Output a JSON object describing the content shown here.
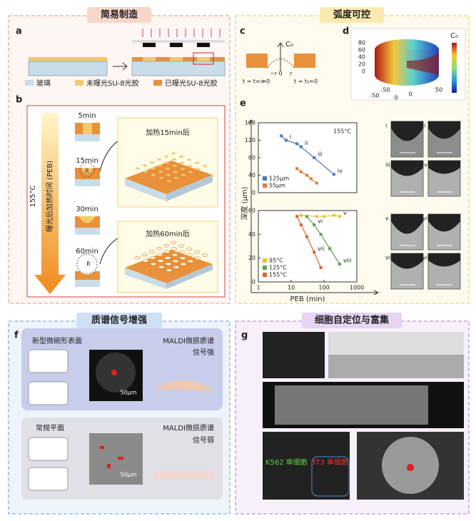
{
  "sections": [
    "简易制造",
    "弧度可控",
    "质谱信号增强",
    "细胞自定位与富集"
  ],
  "panel_a": {
    "label": "a",
    "legend": [
      "玻璃",
      "未曝光SU-8光胶",
      "已曝光SU-8光胶"
    ]
  },
  "panel_b": {
    "label": "b",
    "temperature": "155°C",
    "axis_label": "曝光后加热时间 (PEB)",
    "times": [
      "5min",
      "15min",
      "30min",
      "60min"
    ],
    "radius": [
      "R",
      "R"
    ],
    "captions": [
      "加热15min后",
      "加热60min后"
    ]
  },
  "panel_c": {
    "label": "c",
    "texts": [
      "C₀",
      "−r",
      "0",
      "r",
      "t = t∞≫0",
      "t = t₀≈0"
    ]
  },
  "panel_d": {
    "label": "d",
    "colorbar_label": "C₀",
    "z_ticks": [
      0,
      20,
      40,
      60,
      80
    ],
    "x_ticks": [
      -50,
      0,
      50
    ],
    "y_ticks": [
      -50,
      0
    ]
  },
  "panel_e": {
    "label": "e",
    "image_labels": [
      "i",
      "ii",
      "iii",
      "iv",
      "v",
      "vi",
      "vii",
      "viii"
    ]
  },
  "chart_data": [
    {
      "type": "scatter",
      "xlog": true,
      "lines": true,
      "ylabel": "深度 (μm)",
      "annotation": "155°C",
      "xlim": [
        1,
        1000
      ],
      "ylim": [
        0,
        160
      ],
      "yticks": [
        0,
        40,
        80,
        120,
        160
      ],
      "legend": "lower left",
      "series": [
        {
          "name": "125μm",
          "color": "#4a78c2",
          "x": [
            5,
            7,
            15,
            20,
            50,
            200
          ],
          "values": [
            130,
            120,
            112,
            105,
            80,
            42
          ],
          "labels": [
            null,
            "i",
            null,
            "ii",
            "iii",
            "iv"
          ]
        },
        {
          "name": "55μm",
          "color": "#e07b39",
          "x": [
            15,
            20,
            30,
            40,
            60
          ],
          "values": [
            55,
            48,
            40,
            32,
            22
          ]
        }
      ]
    },
    {
      "type": "scatter",
      "xlog": true,
      "lines": true,
      "xlabel": "PEB (min)",
      "xlim": [
        1,
        1000
      ],
      "xticks": [
        1,
        10,
        100,
        1000
      ],
      "ylim": [
        0,
        60
      ],
      "yticks": [
        0,
        20,
        40,
        60
      ],
      "legend": "lower left",
      "series": [
        {
          "name": "95°C",
          "color": "#e8c23a",
          "x": [
            15,
            20,
            60,
            100,
            200,
            300
          ],
          "values": [
            55,
            56,
            55,
            55,
            56,
            55
          ],
          "labels": [
            null,
            null,
            null,
            null,
            null,
            "v"
          ]
        },
        {
          "name": "125°C",
          "color": "#5aa04a",
          "x": [
            30,
            50,
            80,
            150,
            300
          ],
          "values": [
            55,
            48,
            40,
            28,
            15
          ],
          "labels": [
            null,
            "vi",
            null,
            null,
            "viii"
          ]
        },
        {
          "name": "155°C",
          "color": "#e0622e",
          "x": [
            15,
            20,
            30,
            50,
            80
          ],
          "values": [
            55,
            48,
            38,
            25,
            12
          ],
          "labels": [
            null,
            null,
            null,
            "vii",
            null
          ]
        }
      ]
    }
  ],
  "panel_f": {
    "label": "f",
    "top": {
      "title": "新型微碗形表面",
      "signal": [
        "MALDI微损质谱",
        "信号强"
      ],
      "scale": "50μm"
    },
    "bottom": {
      "title": "常规平面",
      "signal": [
        "MALDI微损质谱",
        "信号弱"
      ],
      "scale": "50μm"
    }
  },
  "panel_g": {
    "label": "g",
    "cells": [
      "K562 单细胞",
      "3T3 单细胞"
    ]
  }
}
